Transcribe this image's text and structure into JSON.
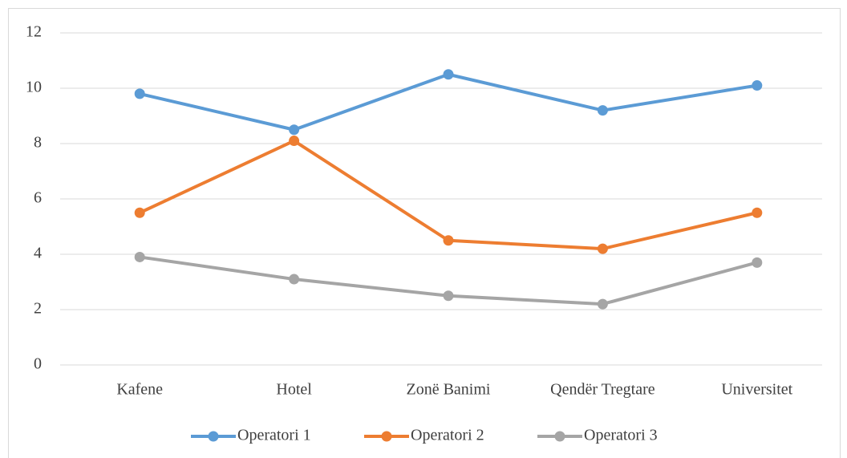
{
  "chart_data": {
    "type": "line",
    "categories": [
      "Kafene",
      "Hotel",
      "Zonë Banimi",
      "Qendër Tregtare",
      "Universitet"
    ],
    "series": [
      {
        "name": "Operatori 1",
        "color": "#5b9bd5",
        "values": [
          9.8,
          8.5,
          10.5,
          9.2,
          10.1
        ]
      },
      {
        "name": "Operatori 2",
        "color": "#ed7d31",
        "values": [
          5.5,
          8.1,
          4.5,
          4.2,
          5.5
        ]
      },
      {
        "name": "Operatori 3",
        "color": "#a5a5a5",
        "values": [
          3.9,
          3.1,
          2.5,
          2.2,
          3.7
        ]
      }
    ],
    "ylim": [
      0,
      12
    ],
    "yticks": [
      0,
      2,
      4,
      6,
      8,
      10,
      12
    ],
    "grid": true,
    "legend": "bottom"
  }
}
